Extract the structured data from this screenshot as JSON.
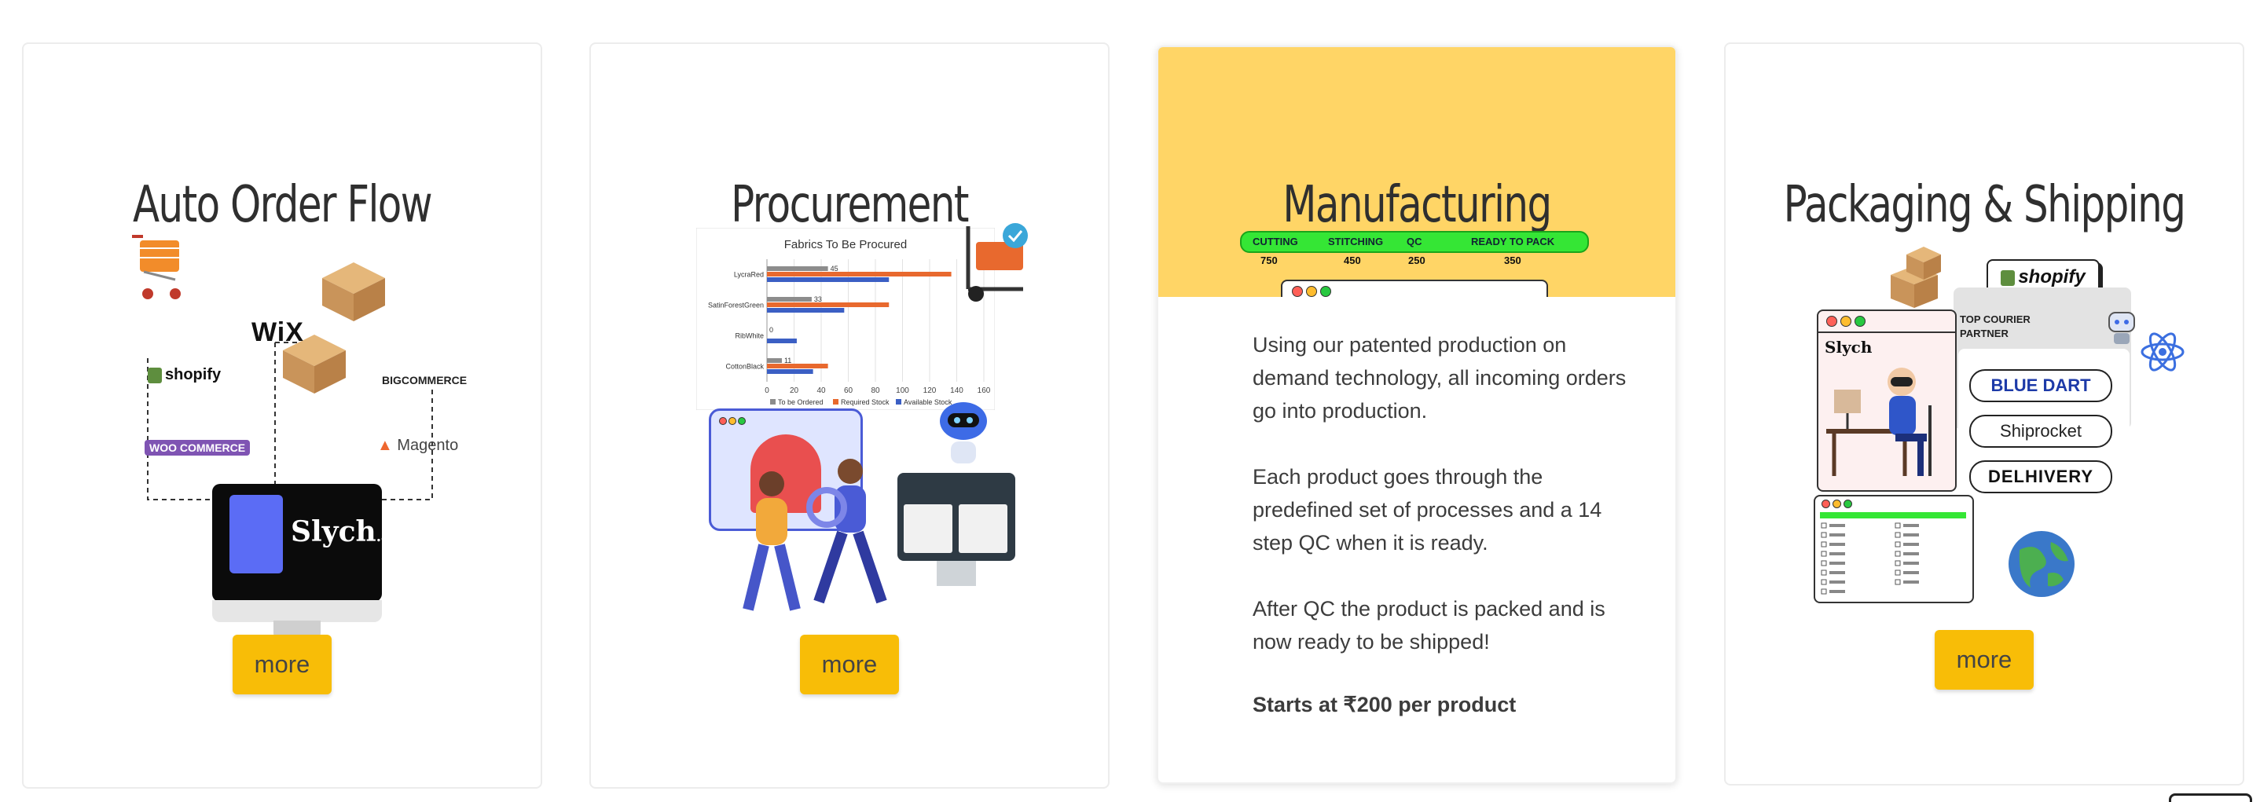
{
  "cards": [
    {
      "title": "Auto Order Flow",
      "more_label": "more",
      "brands": {
        "wix": "WiX",
        "shopify": "shopify",
        "bigcommerce": "BIGCOMMERCE",
        "woocommerce": "WOO COMMERCE",
        "magento": "Magento",
        "slych": "Slych",
        "slych_ai": ".ai"
      }
    },
    {
      "title": "Procurement",
      "more_label": "more",
      "chart_data": {
        "type": "bar",
        "orientation": "horizontal",
        "title": "Fabrics To Be Procured",
        "categories": [
          "LycraRed",
          "SatinForestGreen",
          "RibWhite",
          "CottonBlack"
        ],
        "series": [
          {
            "name": "To be Ordered",
            "color": "#8c8c8c",
            "values": [
              45,
              33,
              0,
              11
            ]
          },
          {
            "name": "Required Stock",
            "color": "#e8692e",
            "values": [
              136,
              90,
              0,
              45
            ]
          },
          {
            "name": "Available Stock",
            "color": "#3b5fc4",
            "values": [
              90,
              57,
              22,
              34
            ]
          }
        ],
        "data_labels": [
          "45",
          "33",
          "0",
          "11"
        ],
        "xlim": [
          0,
          160
        ],
        "xticks": [
          0,
          20,
          40,
          60,
          80,
          100,
          120,
          140,
          160
        ],
        "legend": "bottom"
      }
    },
    {
      "title": "Manufacturing",
      "stages": [
        {
          "label": "CUTTING",
          "count": "750"
        },
        {
          "label": "STITCHING",
          "count": "450"
        },
        {
          "label": "QC",
          "count": "250"
        },
        {
          "label": "READY TO PACK",
          "count": "350"
        }
      ],
      "paragraphs": [
        "Using our patented production on demand technology, all incoming orders go into production.",
        "Each product goes through the predefined set of processes and a 14 step QC when it is ready.",
        "After QC the product is packed and is now ready to be shipped!"
      ],
      "price": "Starts at ₹200 per product"
    },
    {
      "title": "Packaging & Shipping",
      "more_label": "more",
      "shopify": "shopify",
      "courier_heading": "TOP COURIER PARTNER",
      "couriers": [
        "BLUE DART",
        "Shiprocket",
        "DELHIVERY"
      ],
      "slych": "Slych"
    }
  ],
  "colors": {
    "accent": "#f8bd07",
    "manufacturing_bg": "#ffd566",
    "stage_green": "#35e635"
  }
}
